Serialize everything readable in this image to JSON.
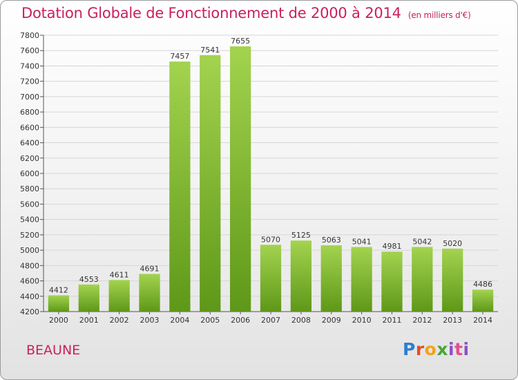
{
  "title": "Dotation Globale de Fonctionnement de 2000 à 2014",
  "subtitle": "(en milliers d'€)",
  "commune": "BEAUNE",
  "logo": {
    "p": "P",
    "r": "r",
    "o": "o",
    "x": "x",
    "i": "i",
    "t": "t",
    "i2": "i"
  },
  "colors": {
    "bar_light": "#9ccd4b",
    "bar_dark": "#5f9a1a",
    "title": "#c8205f"
  },
  "chart_data": {
    "type": "bar",
    "categories": [
      "2000",
      "2001",
      "2002",
      "2003",
      "2004",
      "2005",
      "2006",
      "2007",
      "2008",
      "2009",
      "2010",
      "2011",
      "2012",
      "2013",
      "2014"
    ],
    "values": [
      4412,
      4553,
      4611,
      4691,
      7457,
      7541,
      7655,
      5070,
      5125,
      5063,
      5041,
      4981,
      5042,
      5020,
      4486
    ],
    "data_labels": [
      "4412",
      "4553",
      "4611",
      "4691",
      "7457",
      "7541",
      "7655",
      "5070",
      "5125",
      "5063",
      "5041",
      "4981",
      "5042",
      "5020",
      "4486"
    ],
    "yticks": [
      4200,
      4400,
      4600,
      4800,
      5000,
      5200,
      5400,
      5600,
      5800,
      6000,
      6200,
      6400,
      6600,
      6800,
      7000,
      7200,
      7400,
      7600,
      7800
    ],
    "ylim": [
      4200,
      7800
    ],
    "grid": true
  }
}
